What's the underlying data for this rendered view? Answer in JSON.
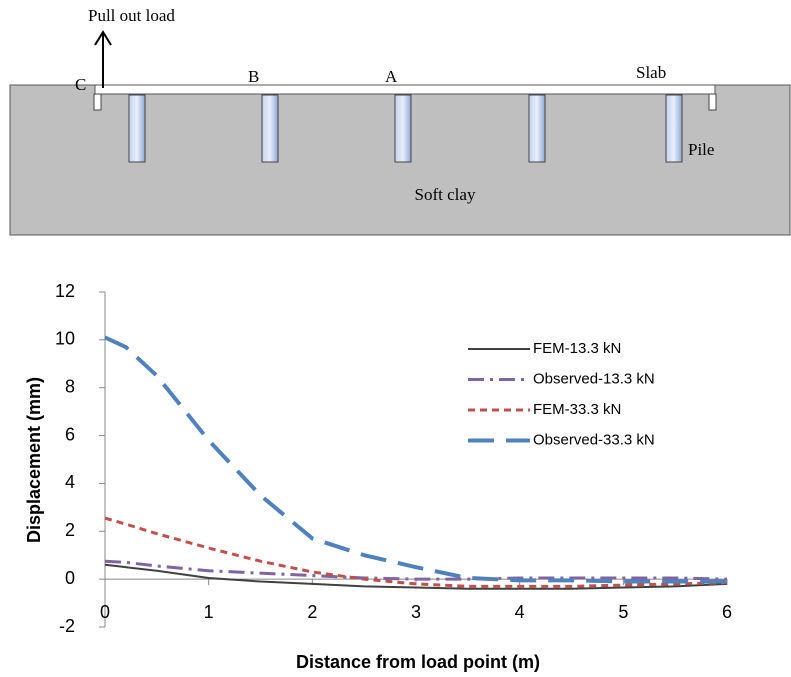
{
  "diagram": {
    "load_label": "Pull out load",
    "point_c": "C",
    "point_b": "B",
    "point_a": "A",
    "slab": "Slab",
    "pile": "Pile",
    "soil": "Soft clay"
  },
  "chart_data": {
    "type": "line",
    "x_label": "Distance from load point (m)",
    "y_label": "Displacement (mm)",
    "x": [
      0,
      0.2,
      0.5,
      1,
      1.5,
      2,
      2.5,
      3,
      3.5,
      4,
      4.5,
      5,
      5.5,
      6
    ],
    "series": [
      {
        "name": "FEM-13.3 kN",
        "color": "#404040",
        "values": [
          0.6,
          0.5,
          0.35,
          0.05,
          -0.1,
          -0.2,
          -0.3,
          -0.35,
          -0.4,
          -0.4,
          -0.4,
          -0.35,
          -0.3,
          -0.2
        ]
      },
      {
        "name": "Observed-13.3 kN",
        "color": "#8064a2",
        "values": [
          0.75,
          0.7,
          0.55,
          0.35,
          0.25,
          0.15,
          0.05,
          0,
          0,
          0.05,
          0.05,
          0.05,
          0.05,
          0
        ]
      },
      {
        "name": "FEM-33.3 kN",
        "color": "#c0504d",
        "values": [
          2.55,
          2.3,
          1.9,
          1.3,
          0.75,
          0.3,
          0,
          -0.2,
          -0.3,
          -0.3,
          -0.3,
          -0.25,
          -0.2,
          -0.15
        ]
      },
      {
        "name": "Observed-33.3 kN",
        "color": "#4f81bd",
        "values": [
          10.1,
          9.7,
          8.5,
          5.8,
          3.5,
          1.7,
          1.0,
          0.5,
          0.05,
          -0.05,
          -0.05,
          -0.1,
          -0.1,
          -0.1
        ]
      }
    ],
    "xlim": [
      0,
      6
    ],
    "xticks": [
      0,
      1,
      2,
      3,
      4,
      5,
      6
    ],
    "ylim": [
      -2,
      12
    ],
    "yticks": [
      -2,
      0,
      2,
      4,
      6,
      8,
      10,
      12
    ],
    "legend": "right"
  }
}
